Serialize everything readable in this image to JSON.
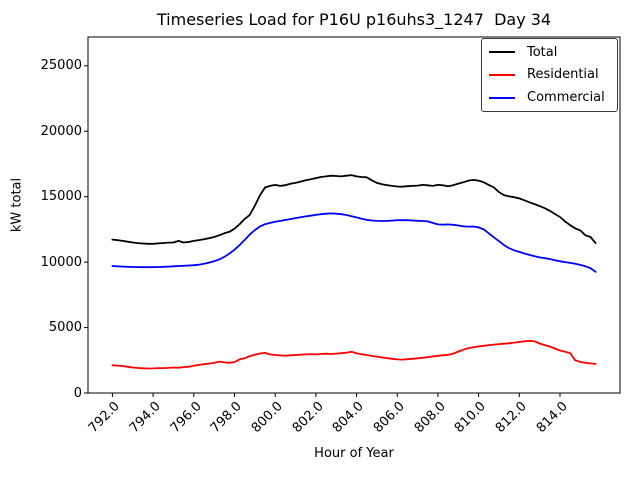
{
  "figure": {
    "title": "Timeseries Load for P16U p16uhs3_1247  Day 34"
  },
  "chart_data": {
    "type": "line",
    "title": "Timeseries Load for P16U p16uhs3_1247  Day 34",
    "xlabel": "Hour of Year",
    "ylabel": "kW total",
    "xlim": [
      790.8,
      816.95
    ],
    "ylim": [
      0,
      27200
    ],
    "grid": false,
    "legend_position": "upper right",
    "xticks": [
      792,
      794,
      796,
      798,
      800,
      802,
      804,
      806,
      808,
      810,
      812,
      814
    ],
    "xtick_labels": [
      "792.0",
      "794.0",
      "796.0",
      "798.0",
      "800.0",
      "802.0",
      "804.0",
      "806.0",
      "808.0",
      "810.0",
      "812.0",
      "814.0"
    ],
    "yticks": [
      0,
      5000,
      10000,
      15000,
      20000,
      25000
    ],
    "ytick_labels": [
      "0",
      "5000",
      "10000",
      "15000",
      "20000",
      "25000"
    ],
    "x": [
      792.0,
      792.25,
      792.5,
      792.75,
      793.0,
      793.25,
      793.5,
      793.75,
      794.0,
      794.25,
      794.5,
      794.75,
      795.0,
      795.25,
      795.5,
      795.75,
      796.0,
      796.25,
      796.5,
      796.75,
      797.0,
      797.25,
      797.5,
      797.75,
      798.0,
      798.25,
      798.5,
      798.75,
      799.0,
      799.25,
      799.5,
      799.75,
      800.0,
      800.25,
      800.5,
      800.75,
      801.0,
      801.25,
      801.5,
      801.75,
      802.0,
      802.25,
      802.5,
      802.75,
      803.0,
      803.25,
      803.5,
      803.75,
      804.0,
      804.25,
      804.5,
      804.75,
      805.0,
      805.25,
      805.5,
      805.75,
      806.0,
      806.25,
      806.5,
      806.75,
      807.0,
      807.25,
      807.5,
      807.75,
      808.0,
      808.25,
      808.5,
      808.75,
      809.0,
      809.25,
      809.5,
      809.75,
      810.0,
      810.25,
      810.5,
      810.75,
      811.0,
      811.25,
      811.5,
      811.75,
      812.0,
      812.25,
      812.5,
      812.75,
      813.0,
      813.25,
      813.5,
      813.75,
      814.0,
      814.25,
      814.5,
      814.75,
      815.0,
      815.25,
      815.5,
      815.75
    ],
    "series": [
      {
        "name": "Total",
        "color": "#000000",
        "values": [
          11720,
          11680,
          11620,
          11560,
          11500,
          11450,
          11420,
          11400,
          11400,
          11430,
          11460,
          11490,
          11500,
          11620,
          11500,
          11540,
          11620,
          11680,
          11750,
          11830,
          11920,
          12050,
          12200,
          12320,
          12550,
          12900,
          13300,
          13600,
          14300,
          15100,
          15700,
          15820,
          15900,
          15820,
          15880,
          15980,
          16050,
          16150,
          16250,
          16330,
          16420,
          16500,
          16550,
          16600,
          16580,
          16550,
          16600,
          16650,
          16550,
          16500,
          16480,
          16250,
          16050,
          15950,
          15880,
          15820,
          15780,
          15760,
          15800,
          15820,
          15850,
          15900,
          15870,
          15820,
          15900,
          15870,
          15800,
          15880,
          16000,
          16100,
          16230,
          16280,
          16230,
          16100,
          15900,
          15700,
          15350,
          15120,
          15020,
          14960,
          14870,
          14720,
          14570,
          14430,
          14280,
          14120,
          13920,
          13680,
          13450,
          13100,
          12820,
          12580,
          12420,
          12050,
          11920,
          11450
        ]
      },
      {
        "name": "Residential",
        "color": "#ff0000",
        "values": [
          2120,
          2090,
          2060,
          2000,
          1950,
          1910,
          1890,
          1870,
          1880,
          1900,
          1900,
          1920,
          1950,
          1930,
          1980,
          2010,
          2080,
          2150,
          2200,
          2250,
          2300,
          2400,
          2340,
          2310,
          2360,
          2570,
          2650,
          2820,
          2920,
          3020,
          3060,
          2950,
          2900,
          2870,
          2850,
          2880,
          2900,
          2930,
          2950,
          2970,
          2950,
          2980,
          3000,
          2980,
          3010,
          3050,
          3080,
          3150,
          3040,
          2960,
          2900,
          2830,
          2780,
          2720,
          2660,
          2610,
          2570,
          2550,
          2580,
          2610,
          2650,
          2690,
          2740,
          2790,
          2840,
          2880,
          2910,
          3010,
          3160,
          3310,
          3430,
          3500,
          3560,
          3610,
          3660,
          3700,
          3740,
          3770,
          3800,
          3850,
          3900,
          3950,
          3980,
          3950,
          3780,
          3660,
          3550,
          3400,
          3250,
          3150,
          3050,
          2500,
          2380,
          2300,
          2260,
          2220
        ]
      },
      {
        "name": "Commercial",
        "color": "#0000ff",
        "values": [
          9700,
          9680,
          9660,
          9640,
          9630,
          9620,
          9615,
          9615,
          9620,
          9630,
          9645,
          9660,
          9680,
          9700,
          9720,
          9740,
          9765,
          9800,
          9870,
          9960,
          10060,
          10210,
          10400,
          10650,
          10950,
          11300,
          11700,
          12100,
          12450,
          12720,
          12900,
          13000,
          13080,
          13150,
          13220,
          13290,
          13360,
          13430,
          13490,
          13550,
          13610,
          13660,
          13700,
          13720,
          13700,
          13660,
          13600,
          13510,
          13420,
          13310,
          13230,
          13180,
          13150,
          13140,
          13150,
          13170,
          13200,
          13210,
          13200,
          13180,
          13160,
          13140,
          13110,
          13000,
          12880,
          12860,
          12880,
          12850,
          12800,
          12740,
          12710,
          12720,
          12650,
          12500,
          12200,
          11900,
          11600,
          11300,
          11060,
          10900,
          10780,
          10660,
          10550,
          10450,
          10360,
          10300,
          10240,
          10150,
          10060,
          10000,
          9940,
          9870,
          9790,
          9680,
          9540,
          9260
        ]
      }
    ]
  }
}
